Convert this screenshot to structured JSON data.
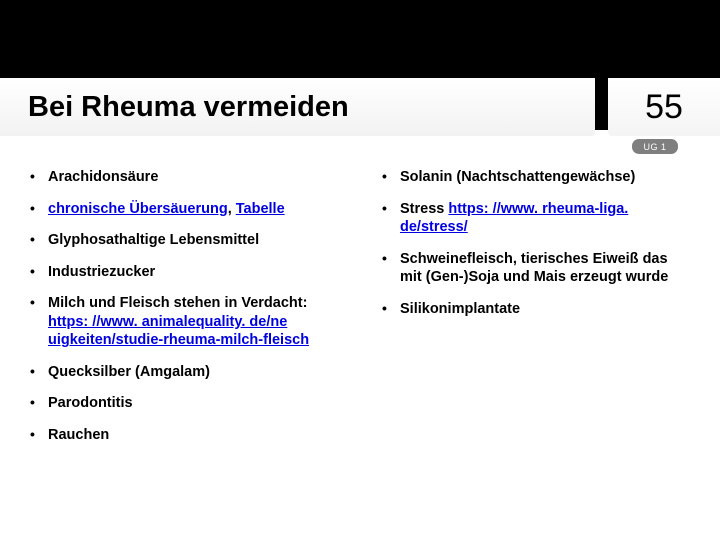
{
  "theme": {
    "bg": "#ffffff",
    "header_bg": "#000000",
    "link_color": "#0000e0",
    "badge_bg": "#7f7f7f",
    "badge_fg": "#ffffff",
    "title_fontsize": 29,
    "pagenum_fontsize": 34,
    "body_fontsize": 14.5
  },
  "header": {
    "title": "Bei Rheuma vermeiden",
    "page_number": "55",
    "badge": "UG 1"
  },
  "left_items": [
    {
      "segments": [
        {
          "text": "Arachidonsäure"
        }
      ]
    },
    {
      "segments": [
        {
          "text": "chronische Übersäuerung",
          "link": true
        },
        {
          "text": ", "
        },
        {
          "text": "Tabelle",
          "link": true
        }
      ]
    },
    {
      "segments": [
        {
          "text": "Glyphosathaltige Lebensmittel"
        }
      ]
    },
    {
      "segments": [
        {
          "text": "Industriezucker"
        }
      ]
    },
    {
      "segments": [
        {
          "text": "Milch und Fleisch stehen in Verdacht: "
        },
        {
          "text": "https: //www. animalequality. de/ne uigkeiten/studie-rheuma-milch-fleisch",
          "link": true
        }
      ]
    },
    {
      "segments": [
        {
          "text": "Quecksilber (Amgalam)"
        }
      ]
    },
    {
      "segments": [
        {
          "text": "Parodontitis"
        }
      ]
    },
    {
      "segments": [
        {
          "text": "Rauchen"
        }
      ]
    }
  ],
  "right_items": [
    {
      "segments": [
        {
          "text": "Solanin (Nachtschattengewächse)"
        }
      ]
    },
    {
      "segments": [
        {
          "text": "Stress "
        },
        {
          "text": "https: //www. rheuma-liga. de/stress/",
          "link": true
        }
      ]
    },
    {
      "segments": [
        {
          "text": "Schweinefleisch, tierisches Eiweiß das mit (Gen-)Soja und Mais erzeugt wurde"
        }
      ]
    },
    {
      "segments": [
        {
          "text": "Silikonimplantate"
        }
      ]
    }
  ]
}
